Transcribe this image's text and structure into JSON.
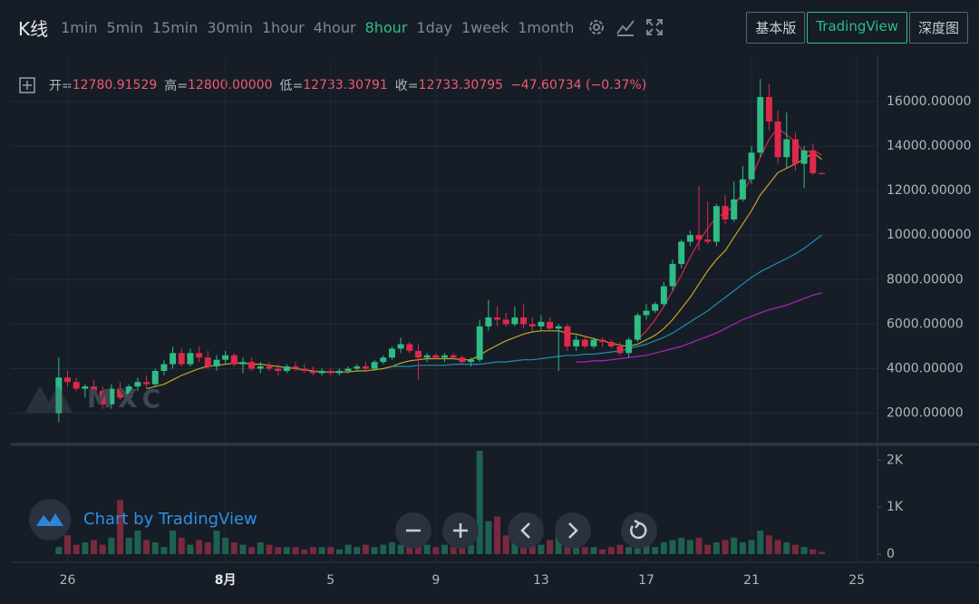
{
  "toolbar": {
    "title": "K线",
    "intervals": [
      "1min",
      "5min",
      "15min",
      "30min",
      "1hour",
      "4hour",
      "8hour",
      "1day",
      "1week",
      "1month"
    ],
    "active_interval": 6,
    "views": [
      "基本版",
      "TradingView",
      "深度图"
    ],
    "active_view": 1
  },
  "ohlc_header": {
    "items": [
      {
        "label": "开=",
        "value": "12780.91529"
      },
      {
        "label": "高=",
        "value": "12800.00000"
      },
      {
        "label": "低=",
        "value": "12733.30791"
      },
      {
        "label": "收=",
        "value": "12733.30795"
      }
    ],
    "change": "−47.60734 (−0.37%)"
  },
  "watermark": "MXC",
  "attribution": "Chart by TradingView",
  "chart_data": {
    "type": "candlestick",
    "categories": [
      null,
      "26",
      null,
      null,
      null,
      null,
      null,
      null,
      null,
      null,
      null,
      null,
      null,
      null,
      null,
      null,
      null,
      null,
      null,
      "8月",
      null,
      null,
      null,
      null,
      null,
      null,
      null,
      null,
      null,
      null,
      null,
      "5",
      null,
      null,
      null,
      null,
      null,
      null,
      null,
      null,
      null,
      null,
      null,
      "9",
      null,
      null,
      null,
      null,
      null,
      null,
      null,
      null,
      null,
      null,
      null,
      "13",
      null,
      null,
      null,
      null,
      null,
      null,
      null,
      null,
      null,
      null,
      null,
      "17",
      null,
      null,
      null,
      null,
      null,
      null,
      null,
      null,
      null,
      null,
      null,
      "21",
      null,
      null,
      null,
      null,
      null,
      null,
      null,
      null,
      null,
      null,
      null,
      "25"
    ],
    "open": [
      2000,
      3600,
      3400,
      3100,
      3200,
      3000,
      2400,
      3100,
      2700,
      3200,
      3400,
      3300,
      3900,
      4200,
      4700,
      4200,
      4700,
      4500,
      4100,
      4400,
      4600,
      4200,
      4300,
      4000,
      4100,
      4000,
      3900,
      4100,
      4000,
      3900,
      3800,
      3900,
      3800,
      3900,
      4000,
      4100,
      4000,
      4300,
      4500,
      4900,
      5100,
      4800,
      4500,
      4600,
      4500,
      4600,
      4500,
      4300,
      4400,
      5900,
      6300,
      6200,
      6000,
      6300,
      6000,
      5900,
      6100,
      5800,
      5900,
      5000,
      5300,
      5000,
      5300,
      5200,
      5000,
      4700,
      5300,
      6400,
      6600,
      6900,
      7700,
      8700,
      9700,
      10000,
      9800,
      9700,
      11300,
      10700,
      11600,
      12500,
      13700,
      16200,
      15100,
      13500,
      14300,
      13200,
      13800,
      12780.91529,
      null,
      null,
      null,
      null
    ],
    "high": [
      4500,
      3900,
      3600,
      3300,
      3500,
      3200,
      3300,
      3400,
      3300,
      3600,
      3700,
      4000,
      4400,
      5000,
      4900,
      4900,
      5000,
      4800,
      4600,
      4800,
      4700,
      4500,
      4500,
      4300,
      4300,
      4200,
      4200,
      4300,
      4200,
      4100,
      4000,
      4000,
      4000,
      4100,
      4200,
      4300,
      4400,
      4600,
      5000,
      5400,
      5200,
      5100,
      4700,
      4700,
      4700,
      4700,
      4600,
      4500,
      6200,
      7100,
      6800,
      6500,
      6800,
      6900,
      6300,
      6400,
      6300,
      6000,
      6000,
      5500,
      5500,
      5400,
      5400,
      5300,
      5200,
      5400,
      6500,
      6900,
      7000,
      7900,
      8900,
      9800,
      10200,
      12200,
      11500,
      11400,
      11800,
      12400,
      13100,
      14000,
      17000,
      16800,
      15600,
      15500,
      14600,
      14000,
      14100,
      12800,
      null,
      null,
      null,
      null
    ],
    "low": [
      1600,
      3200,
      3000,
      2700,
      2900,
      2200,
      2200,
      2600,
      2400,
      3000,
      3100,
      3200,
      3700,
      4000,
      4100,
      4100,
      4300,
      4000,
      3900,
      4200,
      4100,
      3800,
      3900,
      3800,
      3900,
      3700,
      3800,
      3900,
      3800,
      3700,
      3700,
      3700,
      3700,
      3800,
      3900,
      3900,
      3900,
      4200,
      4400,
      4700,
      4700,
      3500,
      4300,
      4400,
      4300,
      4400,
      4200,
      4100,
      4300,
      5700,
      5900,
      5900,
      5900,
      5800,
      5700,
      5700,
      5700,
      3900,
      4800,
      4800,
      4900,
      4900,
      5000,
      4900,
      4600,
      4500,
      5200,
      6200,
      6500,
      6800,
      7500,
      8500,
      9500,
      9300,
      9600,
      9500,
      10500,
      10600,
      11500,
      12300,
      13500,
      14700,
      13200,
      13000,
      12900,
      12100,
      12700,
      12733.30791,
      null,
      null,
      null,
      null
    ],
    "close": [
      3600,
      3400,
      3100,
      3200,
      3000,
      2400,
      3100,
      2700,
      3200,
      3400,
      3300,
      3900,
      4200,
      4700,
      4200,
      4700,
      4500,
      4100,
      4400,
      4600,
      4200,
      4300,
      4000,
      4100,
      4000,
      3900,
      4100,
      4000,
      3900,
      3800,
      3900,
      3800,
      3900,
      4000,
      4100,
      4000,
      4300,
      4500,
      4900,
      5100,
      4800,
      4500,
      4600,
      4500,
      4600,
      4500,
      4300,
      4400,
      5900,
      6300,
      6200,
      6000,
      6300,
      6000,
      5900,
      6100,
      5800,
      5900,
      5000,
      5300,
      5000,
      5300,
      5200,
      5000,
      4700,
      5300,
      6400,
      6600,
      6900,
      7700,
      8700,
      9700,
      10000,
      9800,
      9700,
      11300,
      10700,
      11600,
      12500,
      13700,
      16200,
      15100,
      13500,
      14300,
      13200,
      13800,
      12780,
      12733.30795,
      null,
      null,
      null,
      null
    ],
    "volume": [
      150,
      400,
      200,
      250,
      300,
      200,
      350,
      1150,
      350,
      500,
      300,
      250,
      150,
      500,
      350,
      200,
      300,
      250,
      500,
      350,
      250,
      200,
      150,
      250,
      200,
      150,
      150,
      150,
      100,
      150,
      150,
      150,
      100,
      200,
      150,
      200,
      150,
      200,
      250,
      200,
      300,
      350,
      200,
      150,
      200,
      150,
      150,
      200,
      2200,
      700,
      800,
      400,
      350,
      300,
      250,
      200,
      300,
      400,
      250,
      200,
      150,
      150,
      100,
      150,
      200,
      150,
      300,
      200,
      150,
      250,
      300,
      350,
      300,
      350,
      200,
      250,
      300,
      350,
      250,
      300,
      500,
      400,
      300,
      250,
      200,
      150,
      100,
      50,
      null,
      null,
      null,
      null
    ],
    "ma_lines": [
      {
        "color": "#c9a227",
        "values": [
          null,
          null,
          null,
          null,
          null,
          null,
          null,
          null,
          null,
          null,
          3100,
          3200,
          3300,
          3500,
          3700,
          3850,
          4000,
          4100,
          4150,
          4200,
          4250,
          4250,
          4200,
          4200,
          4150,
          4100,
          4050,
          4000,
          3950,
          3900,
          3850,
          3850,
          3850,
          3850,
          3900,
          3900,
          3950,
          4000,
          4100,
          4250,
          4350,
          4400,
          4450,
          4450,
          4450,
          4450,
          4400,
          4400,
          4600,
          4850,
          5050,
          5250,
          5400,
          5550,
          5650,
          5700,
          5700,
          5700,
          5600,
          5550,
          5450,
          5350,
          5250,
          5150,
          5050,
          5000,
          5100,
          5300,
          5500,
          5800,
          6200,
          6700,
          7200,
          7800,
          8400,
          8900,
          9300,
          9900,
          10500,
          11100,
          11800,
          12300,
          12800,
          13000,
          13200,
          13400,
          13700,
          13400,
          null,
          null,
          null,
          null
        ]
      },
      {
        "color": "#1f8fb0",
        "values": [
          null,
          null,
          null,
          null,
          null,
          null,
          null,
          null,
          null,
          null,
          null,
          null,
          null,
          null,
          null,
          null,
          null,
          null,
          null,
          null,
          null,
          null,
          null,
          null,
          null,
          null,
          null,
          null,
          null,
          null,
          null,
          null,
          null,
          null,
          null,
          null,
          null,
          null,
          4100,
          4100,
          4100,
          4150,
          4150,
          4150,
          4150,
          4200,
          4200,
          4200,
          4200,
          4250,
          4300,
          4300,
          4350,
          4400,
          4400,
          4450,
          4500,
          4550,
          4600,
          4600,
          4650,
          4650,
          4700,
          4750,
          4800,
          4900,
          5000,
          5100,
          5250,
          5400,
          5600,
          5850,
          6100,
          6350,
          6600,
          6900,
          7200,
          7500,
          7800,
          8100,
          8350,
          8550,
          8750,
          8950,
          9150,
          9400,
          9700,
          10000,
          null,
          null,
          null,
          null
        ]
      },
      {
        "color": "#b323b8",
        "values": [
          null,
          null,
          null,
          null,
          null,
          null,
          null,
          null,
          null,
          null,
          null,
          null,
          null,
          null,
          null,
          null,
          null,
          null,
          null,
          null,
          null,
          null,
          null,
          null,
          null,
          null,
          null,
          null,
          null,
          null,
          null,
          null,
          null,
          null,
          null,
          null,
          null,
          null,
          null,
          null,
          null,
          null,
          null,
          null,
          null,
          null,
          null,
          null,
          null,
          null,
          null,
          null,
          null,
          null,
          null,
          null,
          null,
          null,
          null,
          4300,
          4300,
          4350,
          4350,
          4400,
          4450,
          4500,
          4550,
          4600,
          4700,
          4800,
          4900,
          5000,
          5150,
          5300,
          5450,
          5600,
          5800,
          6000,
          6200,
          6350,
          6500,
          6650,
          6750,
          6850,
          7000,
          7150,
          7300,
          7400,
          null,
          null,
          null,
          null
        ]
      },
      {
        "color": "#d7264a",
        "values": [
          null,
          null,
          null,
          null,
          null,
          null,
          null,
          null,
          null,
          null,
          null,
          null,
          null,
          null,
          null,
          null,
          null,
          null,
          null,
          null,
          null,
          null,
          null,
          null,
          null,
          null,
          null,
          null,
          null,
          null,
          null,
          null,
          null,
          null,
          null,
          null,
          null,
          null,
          null,
          null,
          null,
          null,
          null,
          null,
          null,
          null,
          null,
          null,
          null,
          null,
          null,
          null,
          null,
          null,
          null,
          null,
          null,
          null,
          null,
          null,
          null,
          null,
          null,
          null,
          null,
          null,
          5300,
          5700,
          6200,
          6800,
          7500,
          8200,
          9000,
          9700,
          10300,
          10800,
          11000,
          11300,
          11900,
          12600,
          13500,
          14300,
          14800,
          14500,
          14200,
          13700,
          13800,
          13600,
          null,
          null,
          null,
          null
        ]
      }
    ],
    "up_color": "#2dbd85",
    "down_color": "#e0294a",
    "volume_up_color": "#1e6152",
    "volume_down_color": "#7a2a3d",
    "ylim": [
      600,
      17500
    ],
    "yticks": [
      {
        "value": 2000,
        "label": "2000.00000"
      },
      {
        "value": 4000,
        "label": "4000.00000"
      },
      {
        "value": 6000,
        "label": "6000.00000"
      },
      {
        "value": 8000,
        "label": "8000.00000"
      },
      {
        "value": 10000,
        "label": "10000.00000"
      },
      {
        "value": 12000,
        "label": "12000.00000"
      },
      {
        "value": 14000,
        "label": "14000.00000"
      },
      {
        "value": 16000,
        "label": "16000.00000"
      }
    ],
    "volume_ylim": [
      0,
      2200
    ],
    "volume_yticks": [
      0,
      {
        "value": 1000,
        "label": "1K"
      },
      {
        "value": 2000,
        "label": "2K"
      }
    ],
    "grid": true
  }
}
